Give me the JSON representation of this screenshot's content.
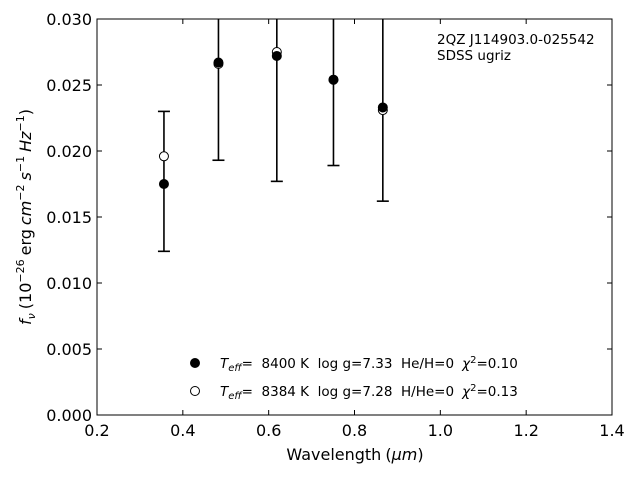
{
  "chart_data": {
    "type": "scatter",
    "annotation": [
      "2QZ J114903.0-025542",
      "SDSS ugriz"
    ],
    "xlabel": "Wavelength",
    "xlabel_unit": "μm",
    "ylabel": "erg",
    "ylabel_symbol": "f",
    "ylabel_symbol_sub": "ν",
    "ylabel_scale": "10",
    "ylabel_scale_exp": "−26",
    "ylabel_unit_cm": "cm",
    "ylabel_unit_cm_exp": "−2",
    "ylabel_unit_s": "s",
    "ylabel_unit_s_exp": "−1",
    "ylabel_unit_hz": "Hz",
    "ylabel_unit_hz_exp": "−1",
    "xlim": [
      0.2,
      1.4
    ],
    "ylim": [
      0.0,
      0.03
    ],
    "xticks": [
      "0.2",
      "0.4",
      "0.6",
      "0.8",
      "1.0",
      "1.2",
      "1.4"
    ],
    "yticks": [
      "0.000",
      "0.005",
      "0.010",
      "0.015",
      "0.020",
      "0.025",
      "0.030"
    ],
    "grid": false,
    "legend_placement": "bottom-center",
    "observed": {
      "x": [
        0.356,
        0.483,
        0.619,
        0.751,
        0.866
      ],
      "y": [
        0.0196,
        0.0266,
        0.0275,
        0.0254,
        0.0231
      ],
      "yerr_low": [
        0.0124,
        0.0193,
        0.0177,
        0.0189,
        0.0162
      ],
      "yerr_high": [
        0.023,
        0.031,
        0.031,
        0.031,
        0.0301
      ]
    },
    "series": [
      {
        "marker": "filled",
        "teff_label": "T",
        "teff_sub": "eff",
        "params": "=  8400 K  log g=7.33  He/H=0",
        "chi": "χ",
        "chi_exp": "2",
        "chi_val": "=0.10",
        "x": [
          0.356,
          0.483,
          0.619,
          0.751,
          0.866
        ],
        "y": [
          0.0175,
          0.0267,
          0.0272,
          0.0254,
          0.0233
        ]
      },
      {
        "marker": "open",
        "teff_label": "T",
        "teff_sub": "eff",
        "params": "=  8384 K  log g=7.28  H/He=0",
        "chi": "χ",
        "chi_exp": "2",
        "chi_val": "=0.13",
        "x": [
          0.356,
          0.483,
          0.619,
          0.751,
          0.866
        ],
        "y": [
          0.0196,
          0.0266,
          0.0275,
          0.0254,
          0.0231
        ]
      }
    ]
  }
}
